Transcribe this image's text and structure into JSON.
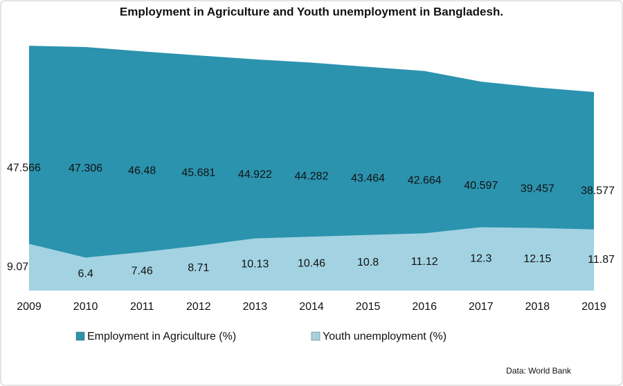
{
  "chart_data": {
    "type": "area",
    "title": "Employment in Agriculture and Youth unemployment in Bangladesh.",
    "x": [
      2009,
      2010,
      2011,
      2012,
      2013,
      2014,
      2015,
      2016,
      2017,
      2018,
      2019
    ],
    "xlim": [
      2009,
      2019
    ],
    "ylim": [
      0,
      50
    ],
    "series": [
      {
        "name": "Employment in Agriculture (%)",
        "color": "#2b93ae",
        "values": [
          47.566,
          47.306,
          46.48,
          45.681,
          44.922,
          44.282,
          43.464,
          42.664,
          40.597,
          39.457,
          38.577
        ]
      },
      {
        "name": "Youth unemployment (%)",
        "color": "#a3d3e2",
        "values": [
          9.07,
          6.4,
          7.46,
          8.71,
          10.13,
          10.46,
          10.8,
          11.12,
          12.3,
          12.15,
          11.87
        ]
      }
    ],
    "legend": "bottom",
    "source": "Data: World Bank"
  }
}
